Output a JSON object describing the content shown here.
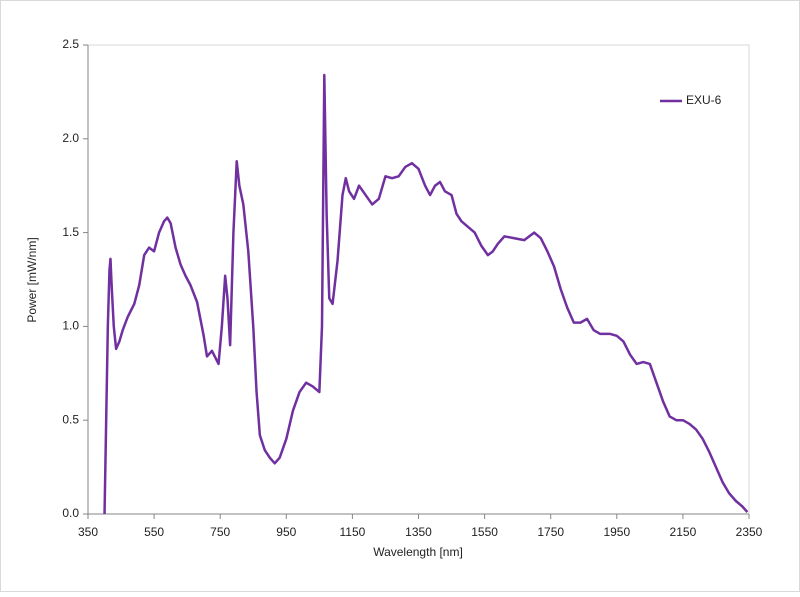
{
  "chart_data": {
    "type": "line",
    "x_label": "Wavelength [nm]",
    "y_label": "Power [mW/nm]",
    "x": [
      400,
      405,
      410,
      415,
      418,
      422,
      428,
      435,
      445,
      455,
      470,
      490,
      505,
      520,
      535,
      550,
      565,
      580,
      590,
      600,
      615,
      630,
      645,
      660,
      680,
      700,
      710,
      725,
      745,
      755,
      765,
      772,
      780,
      790,
      800,
      808,
      820,
      835,
      850,
      860,
      870,
      885,
      900,
      915,
      930,
      950,
      970,
      990,
      1010,
      1030,
      1050,
      1058,
      1065,
      1072,
      1080,
      1090,
      1105,
      1120,
      1130,
      1140,
      1155,
      1170,
      1190,
      1210,
      1230,
      1250,
      1270,
      1290,
      1310,
      1330,
      1350,
      1370,
      1385,
      1400,
      1415,
      1430,
      1450,
      1465,
      1480,
      1500,
      1520,
      1540,
      1560,
      1575,
      1590,
      1610,
      1640,
      1670,
      1700,
      1720,
      1740,
      1760,
      1780,
      1800,
      1820,
      1840,
      1860,
      1880,
      1900,
      1930,
      1950,
      1970,
      1990,
      2010,
      2030,
      2050,
      2070,
      2090,
      2110,
      2130,
      2150,
      2170,
      2190,
      2210,
      2230,
      2250,
      2270,
      2290,
      2310,
      2330,
      2345
    ],
    "series": [
      {
        "name": "EXU-6",
        "color": "#7030a0",
        "values": [
          0.0,
          0.5,
          1.0,
          1.3,
          1.36,
          1.2,
          1.0,
          0.88,
          0.92,
          0.98,
          1.05,
          1.12,
          1.22,
          1.38,
          1.42,
          1.4,
          1.5,
          1.56,
          1.58,
          1.55,
          1.42,
          1.33,
          1.27,
          1.22,
          1.13,
          0.95,
          0.84,
          0.87,
          0.8,
          1.0,
          1.27,
          1.15,
          0.9,
          1.5,
          1.88,
          1.75,
          1.65,
          1.4,
          1.0,
          0.65,
          0.42,
          0.34,
          0.3,
          0.27,
          0.3,
          0.4,
          0.55,
          0.65,
          0.7,
          0.68,
          0.65,
          1.0,
          2.34,
          1.6,
          1.15,
          1.12,
          1.35,
          1.7,
          1.79,
          1.72,
          1.68,
          1.75,
          1.7,
          1.65,
          1.68,
          1.8,
          1.79,
          1.8,
          1.85,
          1.87,
          1.84,
          1.75,
          1.7,
          1.75,
          1.77,
          1.72,
          1.7,
          1.6,
          1.56,
          1.53,
          1.5,
          1.43,
          1.38,
          1.4,
          1.44,
          1.48,
          1.47,
          1.46,
          1.5,
          1.47,
          1.4,
          1.32,
          1.2,
          1.1,
          1.02,
          1.02,
          1.04,
          0.98,
          0.96,
          0.96,
          0.95,
          0.92,
          0.85,
          0.8,
          0.81,
          0.8,
          0.7,
          0.6,
          0.52,
          0.5,
          0.5,
          0.48,
          0.45,
          0.4,
          0.33,
          0.25,
          0.17,
          0.11,
          0.07,
          0.04,
          0.01
        ]
      }
    ],
    "xlim": [
      350,
      2350
    ],
    "xticks": [
      350,
      550,
      750,
      950,
      1150,
      1350,
      1550,
      1750,
      1950,
      2150,
      2350
    ],
    "ylim": [
      0,
      2.5
    ],
    "yticks": [
      {
        "value": 0,
        "label": "0.0"
      },
      0.5,
      {
        "value": 1,
        "label": "1.0"
      },
      1.5,
      {
        "value": 2,
        "label": "2.0"
      },
      2.5
    ],
    "legend": "upper right"
  }
}
